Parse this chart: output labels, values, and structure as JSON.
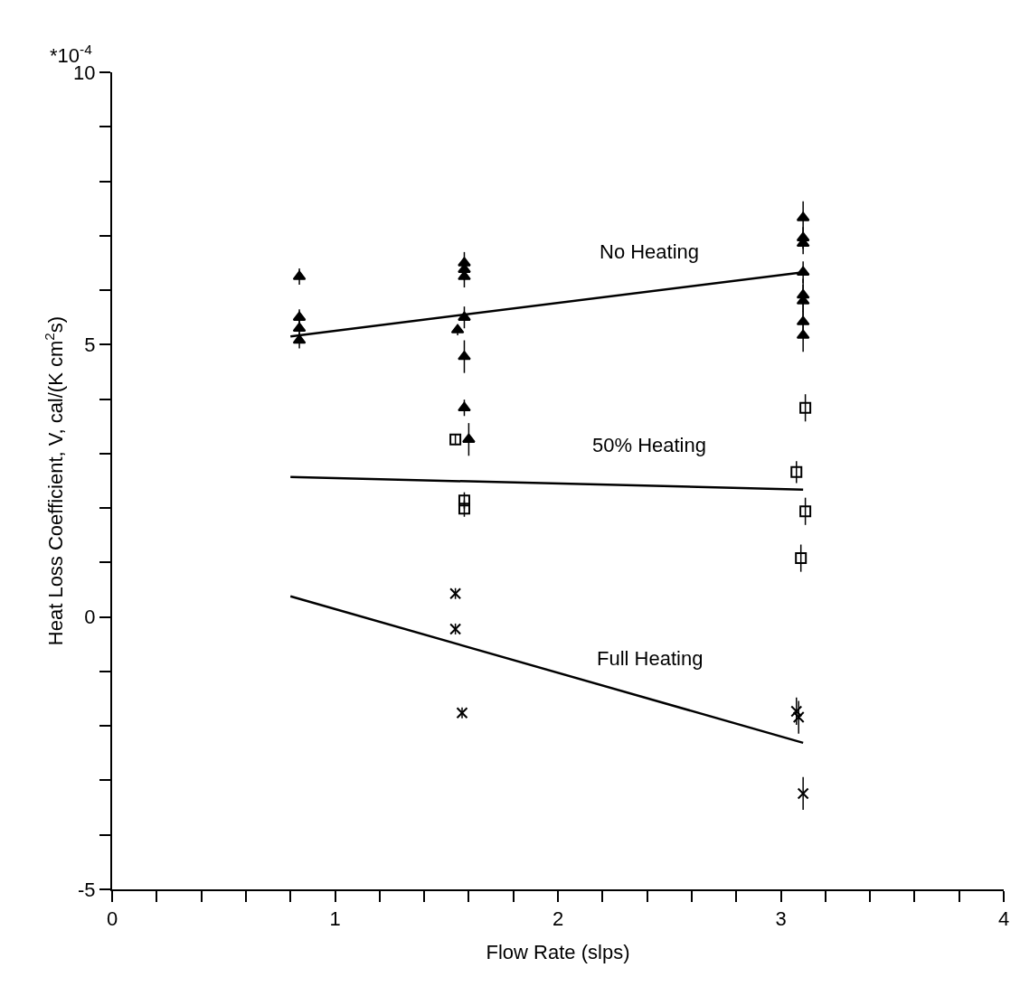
{
  "chart_data": {
    "type": "scatter",
    "xlabel": "Flow Rate (slps)",
    "ylabel": "Heat Loss Coefficient, V, cal/(K cm$^{2}$s)",
    "xlim": [
      0,
      4
    ],
    "ylim": [
      -5,
      10
    ],
    "xticks": [
      0,
      {
        "value": 0.2,
        "label": null
      },
      {
        "value": 0.4,
        "label": null
      },
      {
        "value": 0.6,
        "label": null
      },
      {
        "value": 0.8,
        "label": null
      },
      1,
      {
        "value": 1.2,
        "label": null
      },
      {
        "value": 1.4,
        "label": null
      },
      {
        "value": 1.6,
        "label": null
      },
      {
        "value": 1.8,
        "label": null
      },
      2,
      {
        "value": 2.2,
        "label": null
      },
      {
        "value": 2.4,
        "label": null
      },
      {
        "value": 2.6,
        "label": null
      },
      {
        "value": 2.8,
        "label": null
      },
      3,
      {
        "value": 3.2,
        "label": null
      },
      {
        "value": 3.4,
        "label": null
      },
      {
        "value": 3.6,
        "label": null
      },
      {
        "value": 3.8,
        "label": null
      },
      4
    ],
    "yticks": [
      -5,
      {
        "value": -4,
        "label": null
      },
      {
        "value": -3,
        "label": null
      },
      {
        "value": -2,
        "label": null
      },
      {
        "value": -1,
        "label": null
      },
      0,
      {
        "value": 1,
        "label": null
      },
      {
        "value": 2,
        "label": null
      },
      {
        "value": 3,
        "label": null
      },
      {
        "value": 4,
        "label": null
      },
      5,
      {
        "value": 6,
        "label": null
      },
      {
        "value": 7,
        "label": null
      },
      {
        "value": 8,
        "label": null
      },
      {
        "value": 9,
        "label": null
      },
      10
    ],
    "grid": false,
    "legend": false,
    "series": [
      {
        "marker": "triangle",
        "color": "#000000",
        "x": [
          0.84,
          0.84,
          0.84,
          0.84,
          1.55,
          1.58,
          1.58,
          1.58,
          1.58,
          1.58,
          1.58,
          1.6,
          3.1,
          3.1,
          3.1,
          3.1,
          3.1,
          3.1,
          3.1,
          3.1
        ],
        "values": [
          6.25,
          5.5,
          5.3,
          5.08,
          5.27,
          6.5,
          6.38,
          6.25,
          5.5,
          4.78,
          3.84,
          3.26,
          7.33,
          6.96,
          6.86,
          6.33,
          5.91,
          5.8,
          5.42,
          5.17
        ],
        "errors": [
          0.15,
          0.15,
          0.15,
          0.15,
          0.1,
          0.2,
          0.2,
          0.2,
          0.2,
          0.3,
          0.15,
          0.3,
          0.3,
          0.2,
          0.2,
          0.2,
          0.3,
          0.3,
          0.2,
          0.3
        ]
      },
      {
        "marker": "square",
        "color": "#000000",
        "x": [
          1.54,
          1.58,
          1.58,
          3.07,
          3.11,
          3.11,
          3.09
        ],
        "values": [
          3.26,
          2.14,
          1.99,
          2.66,
          3.84,
          1.94,
          1.08
        ],
        "errors": [
          0.1,
          0.15,
          0.15,
          0.2,
          0.25,
          0.25,
          0.25
        ]
      },
      {
        "marker": "cross",
        "color": "#000000",
        "x": [
          1.54,
          1.54,
          1.57,
          3.07,
          3.08,
          3.1
        ],
        "values": [
          0.43,
          -0.22,
          -1.76,
          -1.73,
          -1.84,
          -3.24
        ],
        "errors": [
          0.1,
          0.1,
          0.1,
          0.25,
          0.3,
          0.3
        ]
      },
      {
        "type": "line",
        "name": "No Heating",
        "color": "#000000",
        "x": [
          0.8,
          3.1
        ],
        "values": [
          5.15,
          6.33
        ]
      },
      {
        "type": "line",
        "name": "50% Heating",
        "color": "#000000",
        "x": [
          0.8,
          3.1
        ],
        "values": [
          2.57,
          2.34
        ]
      },
      {
        "type": "line",
        "name": "Full Heating",
        "color": "#000000",
        "x": [
          0.8,
          3.1
        ],
        "values": [
          0.38,
          -2.31
        ]
      }
    ],
    "annotations": [
      "*10$^{-4}$"
    ]
  }
}
